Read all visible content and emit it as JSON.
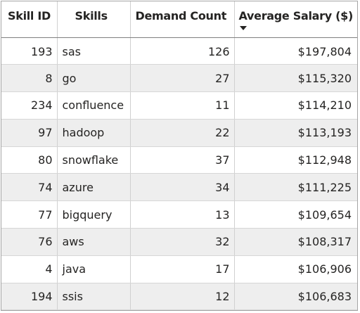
{
  "table": {
    "headers": {
      "skill_id": "Skill ID",
      "skills": "Skills",
      "demand_count": "Demand Count",
      "average_salary": "Average Salary ($)"
    },
    "sort_icon": "sort-descending-icon",
    "rows": [
      {
        "skill_id": "193",
        "skill": "sas",
        "demand_count": "126",
        "average_salary": "$197,804"
      },
      {
        "skill_id": "8",
        "skill": "go",
        "demand_count": "27",
        "average_salary": "$115,320"
      },
      {
        "skill_id": "234",
        "skill": "confluence",
        "demand_count": "11",
        "average_salary": "$114,210"
      },
      {
        "skill_id": "97",
        "skill": "hadoop",
        "demand_count": "22",
        "average_salary": "$113,193"
      },
      {
        "skill_id": "80",
        "skill": "snowflake",
        "demand_count": "37",
        "average_salary": "$112,948"
      },
      {
        "skill_id": "74",
        "skill": "azure",
        "demand_count": "34",
        "average_salary": "$111,225"
      },
      {
        "skill_id": "77",
        "skill": "bigquery",
        "demand_count": "13",
        "average_salary": "$109,654"
      },
      {
        "skill_id": "76",
        "skill": "aws",
        "demand_count": "32",
        "average_salary": "$108,317"
      },
      {
        "skill_id": "4",
        "skill": "java",
        "demand_count": "17",
        "average_salary": "$106,906"
      },
      {
        "skill_id": "194",
        "skill": "ssis",
        "demand_count": "12",
        "average_salary": "$106,683"
      }
    ],
    "colors": {
      "alt_row": "#eeeeee",
      "text": "#252423",
      "border": "#a5a5a5"
    }
  }
}
